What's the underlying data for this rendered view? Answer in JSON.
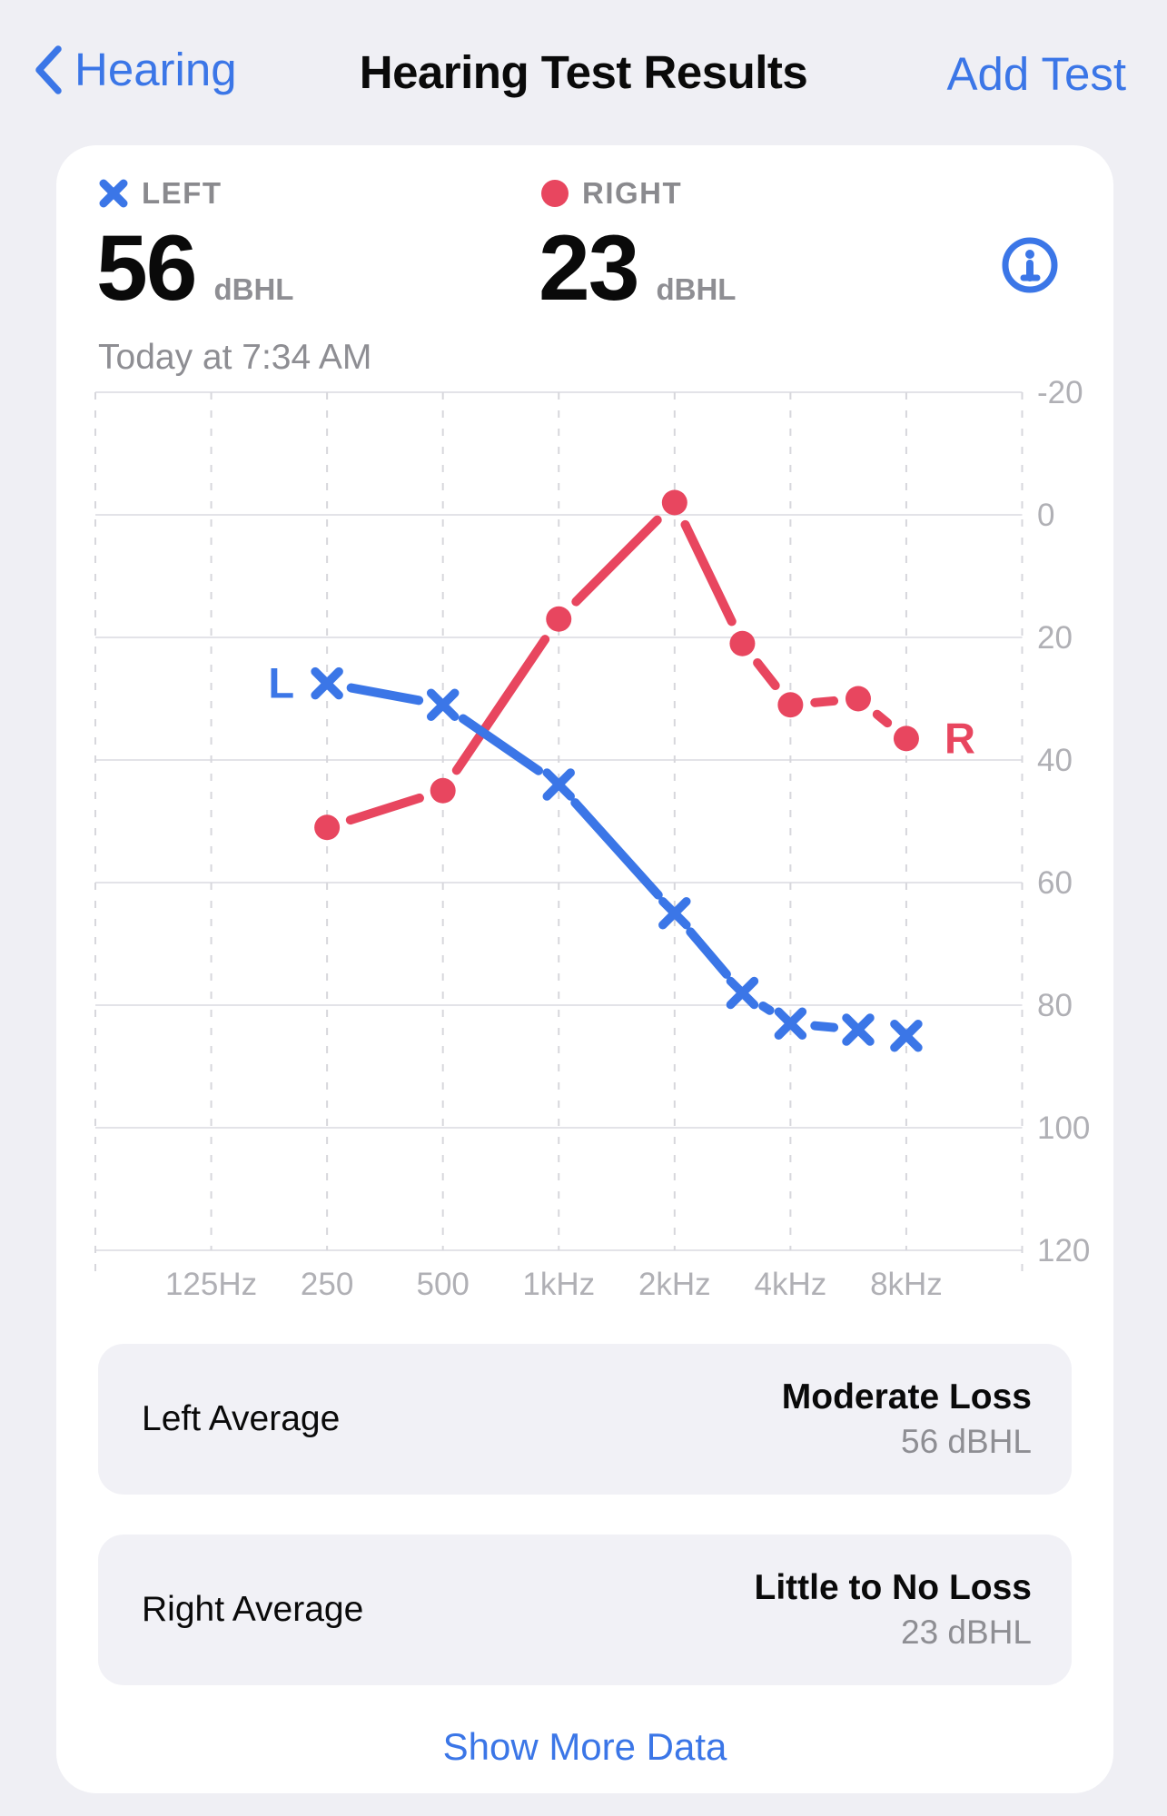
{
  "nav": {
    "back_label": "Hearing",
    "title": "Hearing Test Results",
    "action_label": "Add Test"
  },
  "header": {
    "left": {
      "label": "LEFT",
      "value": "56",
      "unit": "dBHL"
    },
    "right": {
      "label": "RIGHT",
      "value": "23",
      "unit": "dBHL"
    },
    "date": "Today at 7:34 AM"
  },
  "chart_data": {
    "type": "line",
    "x_axis": {
      "unit": "Hz",
      "scale": "log2",
      "tick_labels": [
        "125Hz",
        "250",
        "500",
        "1kHz",
        "2kHz",
        "4kHz",
        "8kHz"
      ],
      "tick_values": [
        125,
        250,
        500,
        1000,
        2000,
        4000,
        8000
      ],
      "range": [
        62.5,
        16000
      ]
    },
    "y_axis": {
      "unit": "dBHL",
      "ticks": [
        -20,
        0,
        20,
        40,
        60,
        80,
        100,
        120
      ],
      "range": [
        -20,
        120
      ],
      "inverted": true,
      "side": "right"
    },
    "grid": {
      "horizontal": "solid",
      "vertical": "dashed"
    },
    "frequencies": [
      250,
      500,
      1000,
      2000,
      3000,
      4000,
      6000,
      8000
    ],
    "series": [
      {
        "name": "Left",
        "short_label": "L",
        "marker": "x",
        "color": "#3B76E7",
        "values": [
          27.5,
          31,
          44,
          65,
          78,
          83,
          84,
          85
        ]
      },
      {
        "name": "Right",
        "short_label": "R",
        "marker": "circle",
        "color": "#E8465F",
        "values": [
          51,
          45,
          17,
          -2,
          21,
          31,
          30,
          36.5
        ]
      }
    ]
  },
  "summary_cards": [
    {
      "title": "Left Average",
      "status": "Moderate Loss",
      "value": "56 dBHL"
    },
    {
      "title": "Right Average",
      "status": "Little to No Loss",
      "value": "23 dBHL"
    }
  ],
  "footer": {
    "show_more_label": "Show More Data"
  },
  "colors": {
    "accent_blue": "#3B76E7",
    "series_red": "#E8465F",
    "text_gray": "#8E8E93",
    "axis_gray": "#B0B0B5",
    "grid_solid": "#E3E3E8",
    "grid_dash": "#D7D7DC",
    "page_bg": "#EFEFF4",
    "card_bg": "#FFFFFF",
    "tile_bg": "#F1F1F6"
  }
}
